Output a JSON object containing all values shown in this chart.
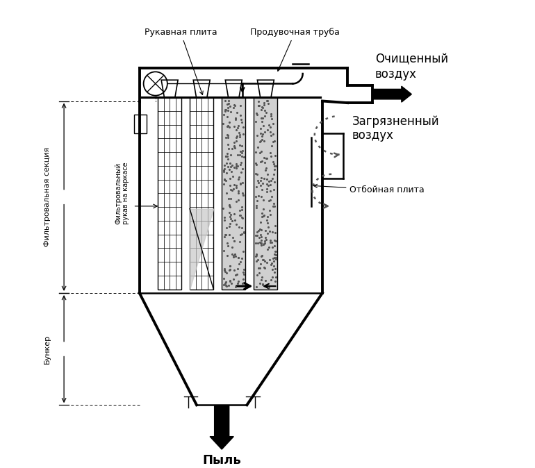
{
  "bg_color": "#ffffff",
  "line_color": "#000000",
  "labels": {
    "rukavnaya_plita": "Рукавная плита",
    "produvochnaya_truba": "Продувочная труба",
    "ochishchennyy_vozdukh": "Очищенный\nвоздух",
    "zagryaznennyy_vozdukh": "Загрязненный\nвоздух",
    "otboynaya_plita": "Отбойная плита",
    "filtrovalnaya_sektsiya": "Фильтровальная секция",
    "filtrovalnyi_rukav": "Фильтровальный\nрукав на каркасе",
    "bunker": "Бункер",
    "pyl": "Пыль"
  },
  "figsize": [
    7.7,
    6.74
  ],
  "dpi": 100
}
